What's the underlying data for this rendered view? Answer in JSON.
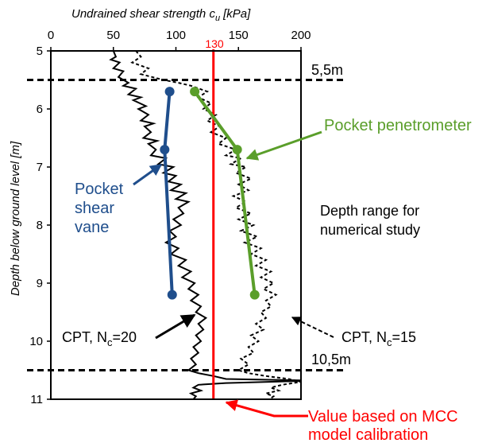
{
  "chart_data": {
    "type": "line",
    "xlabel": "Undrained shear strength c",
    "xlabel_sub": "u",
    "xlabel_unit": "[kPa]",
    "ylabel": "Depth below ground level [m]",
    "xlim": [
      0,
      200
    ],
    "ylim": [
      5,
      11
    ],
    "y_inverted": true,
    "x_axis_position": "top",
    "grid": false,
    "xticks": [
      0,
      50,
      100,
      150,
      200
    ],
    "yticks": [
      5,
      6,
      7,
      8,
      9,
      10,
      11
    ],
    "colors": {
      "pocket_shear_vane": "#1f4e8c",
      "pocket_penetrometer": "#5a9e2a",
      "mcc_line": "#ff0000",
      "cpt": "#000000"
    },
    "series": [
      {
        "name": "Pocket shear vane",
        "style": "solid-marker",
        "points": [
          [
            95,
            5.7
          ],
          [
            91,
            6.7
          ],
          [
            97,
            9.2
          ]
        ]
      },
      {
        "name": "Pocket penetrometer",
        "style": "solid-marker",
        "points": [
          [
            115,
            5.7
          ],
          [
            149,
            6.7
          ],
          [
            163,
            9.2
          ]
        ]
      },
      {
        "name": "CPT, N_c=20",
        "style": "solid",
        "points": [
          [
            50,
            5.0
          ],
          [
            52,
            5.1
          ],
          [
            48,
            5.15
          ],
          [
            55,
            5.2
          ],
          [
            50,
            5.3
          ],
          [
            58,
            5.35
          ],
          [
            54,
            5.45
          ],
          [
            62,
            5.55
          ],
          [
            58,
            5.6
          ],
          [
            68,
            5.65
          ],
          [
            62,
            5.75
          ],
          [
            72,
            5.8
          ],
          [
            66,
            5.85
          ],
          [
            76,
            5.95
          ],
          [
            70,
            6.0
          ],
          [
            78,
            6.1
          ],
          [
            72,
            6.2
          ],
          [
            82,
            6.25
          ],
          [
            75,
            6.3
          ],
          [
            80,
            6.4
          ],
          [
            74,
            6.5
          ],
          [
            85,
            6.55
          ],
          [
            78,
            6.6
          ],
          [
            84,
            6.7
          ],
          [
            80,
            6.8
          ],
          [
            92,
            6.85
          ],
          [
            86,
            6.95
          ],
          [
            98,
            7.0
          ],
          [
            90,
            7.1
          ],
          [
            100,
            7.15
          ],
          [
            94,
            7.25
          ],
          [
            104,
            7.3
          ],
          [
            96,
            7.4
          ],
          [
            108,
            7.45
          ],
          [
            100,
            7.55
          ],
          [
            110,
            7.6
          ],
          [
            102,
            7.7
          ],
          [
            106,
            7.8
          ],
          [
            98,
            7.9
          ],
          [
            104,
            8.0
          ],
          [
            95,
            8.1
          ],
          [
            100,
            8.2
          ],
          [
            92,
            8.3
          ],
          [
            102,
            8.4
          ],
          [
            96,
            8.5
          ],
          [
            108,
            8.6
          ],
          [
            102,
            8.7
          ],
          [
            112,
            8.8
          ],
          [
            105,
            8.9
          ],
          [
            115,
            9.0
          ],
          [
            110,
            9.1
          ],
          [
            118,
            9.2
          ],
          [
            112,
            9.3
          ],
          [
            120,
            9.4
          ],
          [
            116,
            9.5
          ],
          [
            124,
            9.6
          ],
          [
            118,
            9.7
          ],
          [
            122,
            9.8
          ],
          [
            116,
            9.9
          ],
          [
            120,
            10.0
          ],
          [
            114,
            10.1
          ],
          [
            118,
            10.2
          ],
          [
            112,
            10.3
          ],
          [
            116,
            10.4
          ],
          [
            110,
            10.5
          ],
          [
            118,
            10.55
          ],
          [
            130,
            10.6
          ],
          [
            140,
            10.65
          ],
          [
            210,
            10.68
          ],
          [
            140,
            10.72
          ],
          [
            118,
            10.75
          ],
          [
            114,
            10.8
          ],
          [
            120,
            10.85
          ],
          [
            112,
            10.9
          ],
          [
            116,
            10.95
          ],
          [
            114,
            11.0
          ]
        ]
      },
      {
        "name": "CPT, N_c=15",
        "style": "dashed",
        "points": [
          [
            68,
            5.0
          ],
          [
            72,
            5.1
          ],
          [
            65,
            5.2
          ],
          [
            78,
            5.3
          ],
          [
            72,
            5.4
          ],
          [
            90,
            5.5
          ],
          [
            102,
            5.55
          ],
          [
            112,
            5.6
          ],
          [
            125,
            5.7
          ],
          [
            118,
            5.8
          ],
          [
            128,
            5.9
          ],
          [
            122,
            6.0
          ],
          [
            132,
            6.1
          ],
          [
            125,
            6.2
          ],
          [
            135,
            6.3
          ],
          [
            128,
            6.4
          ],
          [
            140,
            6.5
          ],
          [
            134,
            6.6
          ],
          [
            148,
            6.7
          ],
          [
            140,
            6.8
          ],
          [
            152,
            6.85
          ],
          [
            144,
            6.95
          ],
          [
            156,
            7.0
          ],
          [
            148,
            7.1
          ],
          [
            160,
            7.2
          ],
          [
            150,
            7.3
          ],
          [
            158,
            7.4
          ],
          [
            146,
            7.5
          ],
          [
            156,
            7.6
          ],
          [
            148,
            7.7
          ],
          [
            160,
            7.8
          ],
          [
            150,
            7.9
          ],
          [
            162,
            8.0
          ],
          [
            152,
            8.1
          ],
          [
            165,
            8.2
          ],
          [
            155,
            8.3
          ],
          [
            168,
            8.4
          ],
          [
            160,
            8.5
          ],
          [
            172,
            8.6
          ],
          [
            164,
            8.7
          ],
          [
            176,
            8.8
          ],
          [
            168,
            8.9
          ],
          [
            178,
            9.0
          ],
          [
            170,
            9.1
          ],
          [
            180,
            9.2
          ],
          [
            172,
            9.3
          ],
          [
            176,
            9.4
          ],
          [
            168,
            9.5
          ],
          [
            172,
            9.6
          ],
          [
            164,
            9.7
          ],
          [
            170,
            9.8
          ],
          [
            160,
            9.9
          ],
          [
            166,
            10.0
          ],
          [
            158,
            10.1
          ],
          [
            162,
            10.2
          ],
          [
            152,
            10.3
          ],
          [
            158,
            10.4
          ],
          [
            150,
            10.5
          ],
          [
            158,
            10.55
          ],
          [
            172,
            10.6
          ],
          [
            190,
            10.65
          ],
          [
            200,
            10.7
          ],
          [
            185,
            10.75
          ],
          [
            176,
            10.8
          ],
          [
            182,
            10.85
          ],
          [
            172,
            10.9
          ],
          [
            178,
            10.95
          ],
          [
            175,
            11.0
          ]
        ]
      }
    ],
    "mcc_value": 130,
    "mcc_value_label": "130",
    "depth_range": [
      5.5,
      10.5
    ],
    "depth_labels": [
      "5,5m",
      "10,5m"
    ],
    "annotations": {
      "shear_vane": [
        "Pocket",
        "shear",
        "vane"
      ],
      "penetrometer": "Pocket penetrometer",
      "depth_range": [
        "Depth range for",
        "numerical study"
      ],
      "cpt20_main": "CPT, N",
      "cpt20_sub": "c",
      "cpt20_tail": "=20",
      "cpt15_main": "CPT, N",
      "cpt15_sub": "c",
      "cpt15_tail": "=15",
      "mcc": [
        "Value based on MCC",
        "model calibration"
      ]
    }
  }
}
